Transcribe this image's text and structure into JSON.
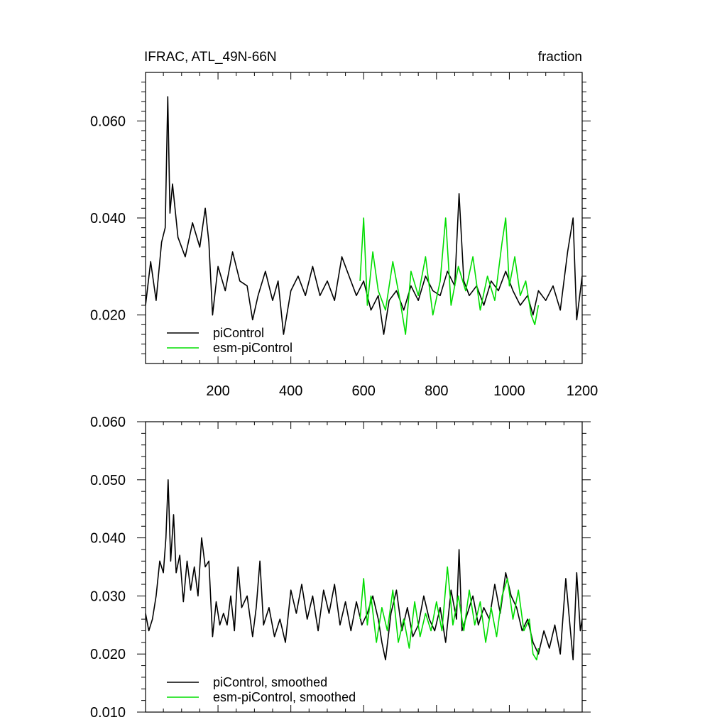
{
  "header": {
    "left_title": "IFRAC, ATL_49N-66N",
    "right_title": "fraction"
  },
  "colors": {
    "piControl": "#000000",
    "esm_piControl": "#00dd00",
    "axes": "#000000",
    "background": "#ffffff"
  },
  "chart_data": [
    {
      "type": "line",
      "title": "IFRAC, ATL_49N-66N",
      "units": "fraction",
      "xlim": [
        1,
        1200
      ],
      "ylim": [
        0.01,
        0.07
      ],
      "x_ticks": [
        200,
        400,
        600,
        800,
        1000,
        1200
      ],
      "x_tick_labels": [
        "200",
        "400",
        "600",
        "800",
        "1000",
        "1200"
      ],
      "y_ticks": [
        0.02,
        0.04,
        0.06
      ],
      "y_tick_labels": [
        "0.020",
        "0.040",
        "0.060"
      ],
      "grid": false,
      "legend_position": "bottom-left",
      "legend": [
        "piControl",
        "esm-piControl"
      ],
      "series": [
        {
          "name": "piControl",
          "color": "#000000",
          "x": [
            1,
            15,
            30,
            45,
            55,
            62,
            68,
            75,
            90,
            110,
            130,
            150,
            165,
            175,
            185,
            200,
            220,
            240,
            260,
            280,
            295,
            310,
            330,
            350,
            365,
            380,
            400,
            420,
            440,
            460,
            480,
            500,
            520,
            540,
            560,
            580,
            600,
            620,
            640,
            655,
            670,
            690,
            710,
            730,
            750,
            770,
            790,
            810,
            830,
            850,
            862,
            875,
            890,
            910,
            930,
            950,
            970,
            990,
            1010,
            1030,
            1050,
            1065,
            1080,
            1100,
            1120,
            1140,
            1160,
            1175,
            1185,
            1200
          ],
          "y": [
            0.022,
            0.031,
            0.023,
            0.035,
            0.038,
            0.065,
            0.041,
            0.047,
            0.036,
            0.032,
            0.039,
            0.034,
            0.042,
            0.035,
            0.02,
            0.03,
            0.025,
            0.033,
            0.027,
            0.026,
            0.019,
            0.024,
            0.029,
            0.023,
            0.027,
            0.016,
            0.025,
            0.028,
            0.024,
            0.03,
            0.024,
            0.027,
            0.023,
            0.032,
            0.028,
            0.024,
            0.027,
            0.021,
            0.024,
            0.016,
            0.023,
            0.025,
            0.021,
            0.026,
            0.023,
            0.028,
            0.025,
            0.024,
            0.029,
            0.026,
            0.045,
            0.027,
            0.024,
            0.026,
            0.022,
            0.027,
            0.025,
            0.029,
            0.025,
            0.022,
            0.024,
            0.02,
            0.025,
            0.023,
            0.026,
            0.021,
            0.033,
            0.04,
            0.019,
            0.028
          ]
        },
        {
          "name": "esm-piControl",
          "color": "#00dd00",
          "x": [
            590,
            600,
            610,
            625,
            640,
            660,
            680,
            700,
            715,
            730,
            750,
            770,
            790,
            810,
            825,
            840,
            860,
            880,
            900,
            920,
            940,
            960,
            980,
            990,
            1000,
            1015,
            1030,
            1045,
            1060,
            1070,
            1080
          ],
          "y": [
            0.027,
            0.04,
            0.022,
            0.033,
            0.025,
            0.021,
            0.031,
            0.023,
            0.016,
            0.029,
            0.024,
            0.032,
            0.02,
            0.027,
            0.04,
            0.022,
            0.03,
            0.025,
            0.032,
            0.021,
            0.028,
            0.023,
            0.035,
            0.04,
            0.026,
            0.032,
            0.024,
            0.027,
            0.02,
            0.018,
            0.022
          ]
        }
      ]
    },
    {
      "type": "line",
      "xlim": [
        1,
        1200
      ],
      "ylim": [
        0.01,
        0.06
      ],
      "x_ticks": [
        200,
        400,
        600,
        800,
        1000,
        1200
      ],
      "y_ticks": [
        0.01,
        0.02,
        0.03,
        0.04,
        0.05,
        0.06
      ],
      "y_tick_labels": [
        "0.010",
        "0.020",
        "0.030",
        "0.040",
        "0.050",
        "0.060"
      ],
      "grid": false,
      "legend_position": "bottom-left",
      "legend": [
        "piControl, smoothed",
        "esm-piControl, smoothed"
      ],
      "series": [
        {
          "name": "piControl, smoothed",
          "color": "#000000",
          "x": [
            1,
            10,
            20,
            30,
            40,
            50,
            57,
            63,
            70,
            78,
            85,
            95,
            105,
            115,
            125,
            135,
            145,
            155,
            165,
            175,
            185,
            195,
            205,
            215,
            225,
            235,
            245,
            255,
            265,
            280,
            295,
            305,
            315,
            325,
            340,
            355,
            370,
            385,
            400,
            415,
            430,
            445,
            460,
            475,
            490,
            505,
            520,
            535,
            550,
            565,
            580,
            595,
            610,
            625,
            640,
            650,
            660,
            675,
            690,
            705,
            720,
            735,
            750,
            765,
            780,
            795,
            810,
            825,
            840,
            855,
            862,
            870,
            885,
            900,
            915,
            930,
            945,
            960,
            975,
            990,
            1005,
            1020,
            1035,
            1050,
            1065,
            1080,
            1095,
            1110,
            1125,
            1140,
            1155,
            1165,
            1175,
            1185,
            1195,
            1200
          ],
          "y": [
            0.027,
            0.024,
            0.026,
            0.03,
            0.036,
            0.034,
            0.04,
            0.05,
            0.036,
            0.044,
            0.034,
            0.037,
            0.029,
            0.036,
            0.031,
            0.035,
            0.03,
            0.04,
            0.035,
            0.036,
            0.023,
            0.029,
            0.025,
            0.027,
            0.025,
            0.03,
            0.024,
            0.035,
            0.028,
            0.03,
            0.023,
            0.028,
            0.036,
            0.025,
            0.028,
            0.023,
            0.026,
            0.022,
            0.031,
            0.027,
            0.032,
            0.026,
            0.03,
            0.024,
            0.031,
            0.027,
            0.032,
            0.025,
            0.029,
            0.024,
            0.029,
            0.025,
            0.027,
            0.03,
            0.026,
            0.022,
            0.019,
            0.027,
            0.031,
            0.024,
            0.028,
            0.023,
            0.025,
            0.03,
            0.026,
            0.024,
            0.028,
            0.022,
            0.031,
            0.026,
            0.038,
            0.024,
            0.027,
            0.03,
            0.025,
            0.028,
            0.026,
            0.032,
            0.027,
            0.034,
            0.03,
            0.028,
            0.024,
            0.026,
            0.022,
            0.02,
            0.024,
            0.021,
            0.025,
            0.02,
            0.033,
            0.026,
            0.019,
            0.034,
            0.024,
            0.026
          ]
        },
        {
          "name": "esm-piControl, smoothed",
          "color": "#00dd00",
          "x": [
            590,
            600,
            610,
            620,
            635,
            650,
            665,
            680,
            695,
            710,
            725,
            740,
            755,
            770,
            785,
            800,
            815,
            830,
            845,
            860,
            875,
            890,
            905,
            920,
            935,
            950,
            965,
            980,
            995,
            1010,
            1025,
            1040,
            1055,
            1065,
            1075,
            1080
          ],
          "y": [
            0.026,
            0.033,
            0.025,
            0.03,
            0.022,
            0.028,
            0.024,
            0.031,
            0.022,
            0.026,
            0.021,
            0.029,
            0.023,
            0.027,
            0.024,
            0.029,
            0.024,
            0.035,
            0.025,
            0.03,
            0.024,
            0.031,
            0.025,
            0.029,
            0.022,
            0.028,
            0.023,
            0.03,
            0.033,
            0.026,
            0.031,
            0.024,
            0.026,
            0.02,
            0.019,
            0.021
          ]
        }
      ]
    }
  ]
}
